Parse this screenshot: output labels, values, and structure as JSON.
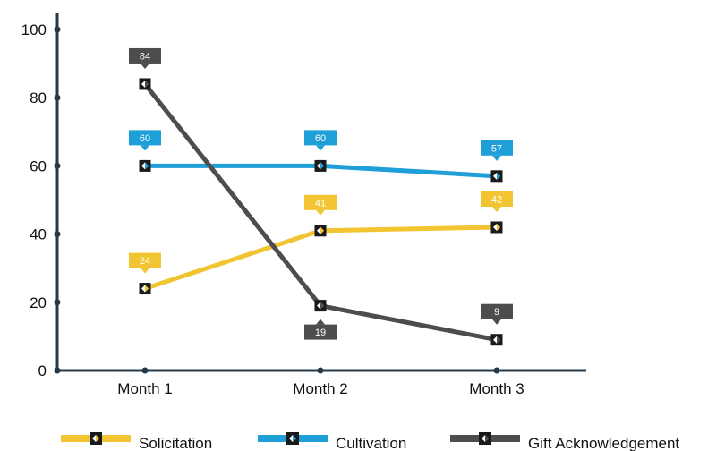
{
  "chart_data": {
    "type": "line",
    "categories": [
      "Month 1",
      "Month 2",
      "Month 3"
    ],
    "ylim": [
      0,
      100
    ],
    "yticks": [
      0,
      20,
      40,
      60,
      80,
      100
    ],
    "grid": false,
    "legend_position": "bottom",
    "series": [
      {
        "name": "Solicitation",
        "values": [
          24,
          41,
          42
        ],
        "color": "#f2c431"
      },
      {
        "name": "Cultivation",
        "values": [
          60,
          60,
          57
        ],
        "color": "#1e9fd8"
      },
      {
        "name": "Gift Acknowledgement",
        "values": [
          84,
          19,
          9
        ],
        "color": "#4d4d4d"
      }
    ],
    "axis_color": "#243a4a"
  }
}
